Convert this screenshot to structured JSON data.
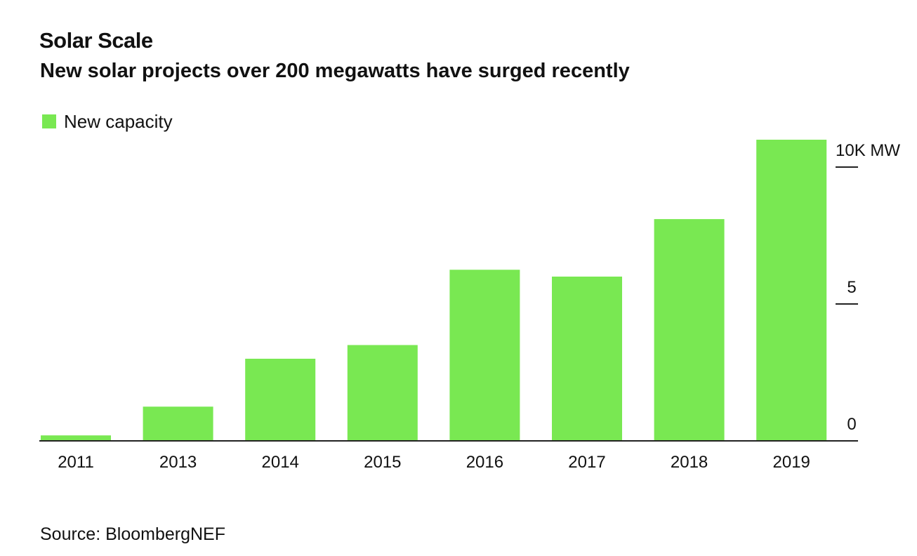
{
  "header": {
    "title": "Solar Scale",
    "subtitle": "New solar projects over 200 megawatts have surged recently"
  },
  "legend": {
    "label": "New capacity"
  },
  "colors": {
    "bar": "#79e852",
    "axis": "#222222",
    "text": "#111111"
  },
  "chart_data": {
    "type": "bar",
    "title": "Solar Scale",
    "subtitle": "New solar projects over 200 megawatts have surged recently",
    "categories": [
      "2011",
      "2013",
      "2014",
      "2015",
      "2016",
      "2017",
      "2018",
      "2019"
    ],
    "series": [
      {
        "name": "New capacity",
        "values": [
          0.2,
          1.25,
          3.0,
          3.5,
          6.25,
          6.0,
          8.1,
          11.0
        ]
      }
    ],
    "y_ticks": [
      {
        "value": 0,
        "label": "0"
      },
      {
        "value": 5,
        "label": "5"
      },
      {
        "value": 10,
        "label": "10K MW"
      }
    ],
    "ylim": [
      0,
      11
    ],
    "ylabel": "",
    "xlabel": "",
    "y_axis_side": "right",
    "grid": false,
    "legend_position": "top-left"
  },
  "footer": {
    "source": "Source: BloombergNEF"
  }
}
